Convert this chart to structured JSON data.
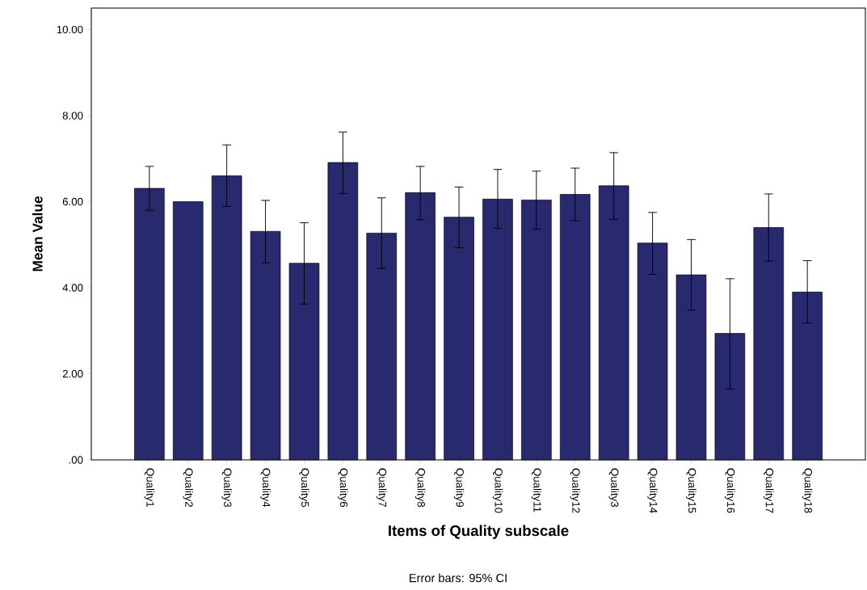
{
  "chart_data": {
    "type": "bar",
    "xlabel": "Items of Quality subscale",
    "ylabel": "Mean Value",
    "categories": [
      "Quality1",
      "Quality2",
      "Quality3",
      "Quality4",
      "Quality5",
      "Quality6",
      "Quality7",
      "Quality8",
      "Quality9",
      "Quality10",
      "Quality11",
      "Quality12",
      "Quality3",
      "Quality14",
      "Quality15",
      "Quality16",
      "Quality17",
      "Quality18"
    ],
    "values": [
      6.31,
      6.0,
      6.6,
      5.31,
      4.57,
      6.91,
      5.27,
      6.21,
      5.64,
      6.06,
      6.04,
      6.17,
      6.37,
      5.04,
      4.3,
      2.94,
      5.4,
      3.9
    ],
    "errors": [
      [
        5.8,
        6.82
      ],
      null,
      [
        5.89,
        7.32
      ],
      [
        4.58,
        6.03
      ],
      [
        3.62,
        5.51
      ],
      [
        6.19,
        7.62
      ],
      [
        4.45,
        6.09
      ],
      [
        5.58,
        6.82
      ],
      [
        4.93,
        6.34
      ],
      [
        5.38,
        6.75
      ],
      [
        5.36,
        6.71
      ],
      [
        5.56,
        6.78
      ],
      [
        5.59,
        7.14
      ],
      [
        4.31,
        5.75
      ],
      [
        3.48,
        5.12
      ],
      [
        1.65,
        4.21
      ],
      [
        4.62,
        6.18
      ],
      [
        3.18,
        4.63
      ]
    ],
    "color": "#29296f",
    "ylim": [
      0,
      10.5
    ],
    "yticks": [
      {
        "value": 0,
        "label": ".00"
      },
      {
        "value": 2,
        "label": "2.00"
      },
      {
        "value": 4,
        "label": "4.00"
      },
      {
        "value": 6,
        "label": "6.00"
      },
      {
        "value": 8,
        "label": "8.00"
      },
      {
        "value": 10,
        "label": "10.00"
      }
    ],
    "annotations": [
      "Error bars: 95% CI"
    ]
  }
}
